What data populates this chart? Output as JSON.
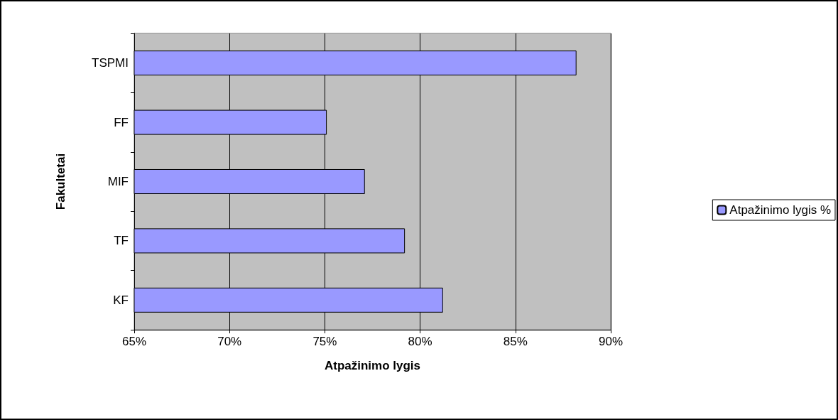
{
  "chart_data": {
    "type": "bar",
    "orientation": "horizontal",
    "xlabel": "Atpažinimo lygis",
    "ylabel": "Fakultetai",
    "categories": [
      "TSPMI",
      "FF",
      "MIF",
      "TF",
      "KF"
    ],
    "series": [
      {
        "name": "Atpažinimo lygis %",
        "color": "#9999ff",
        "values": [
          88.2,
          75.1,
          77.1,
          79.2,
          81.2
        ]
      }
    ],
    "xlim": [
      65,
      90
    ],
    "xticks": [
      {
        "value": 65,
        "label": "65%"
      },
      {
        "value": 70,
        "label": "70%"
      },
      {
        "value": 75,
        "label": "75%"
      },
      {
        "value": 80,
        "label": "80%"
      },
      {
        "value": 85,
        "label": "85%"
      },
      {
        "value": 90,
        "label": "90%"
      }
    ],
    "grid": "x",
    "legend": "right"
  }
}
